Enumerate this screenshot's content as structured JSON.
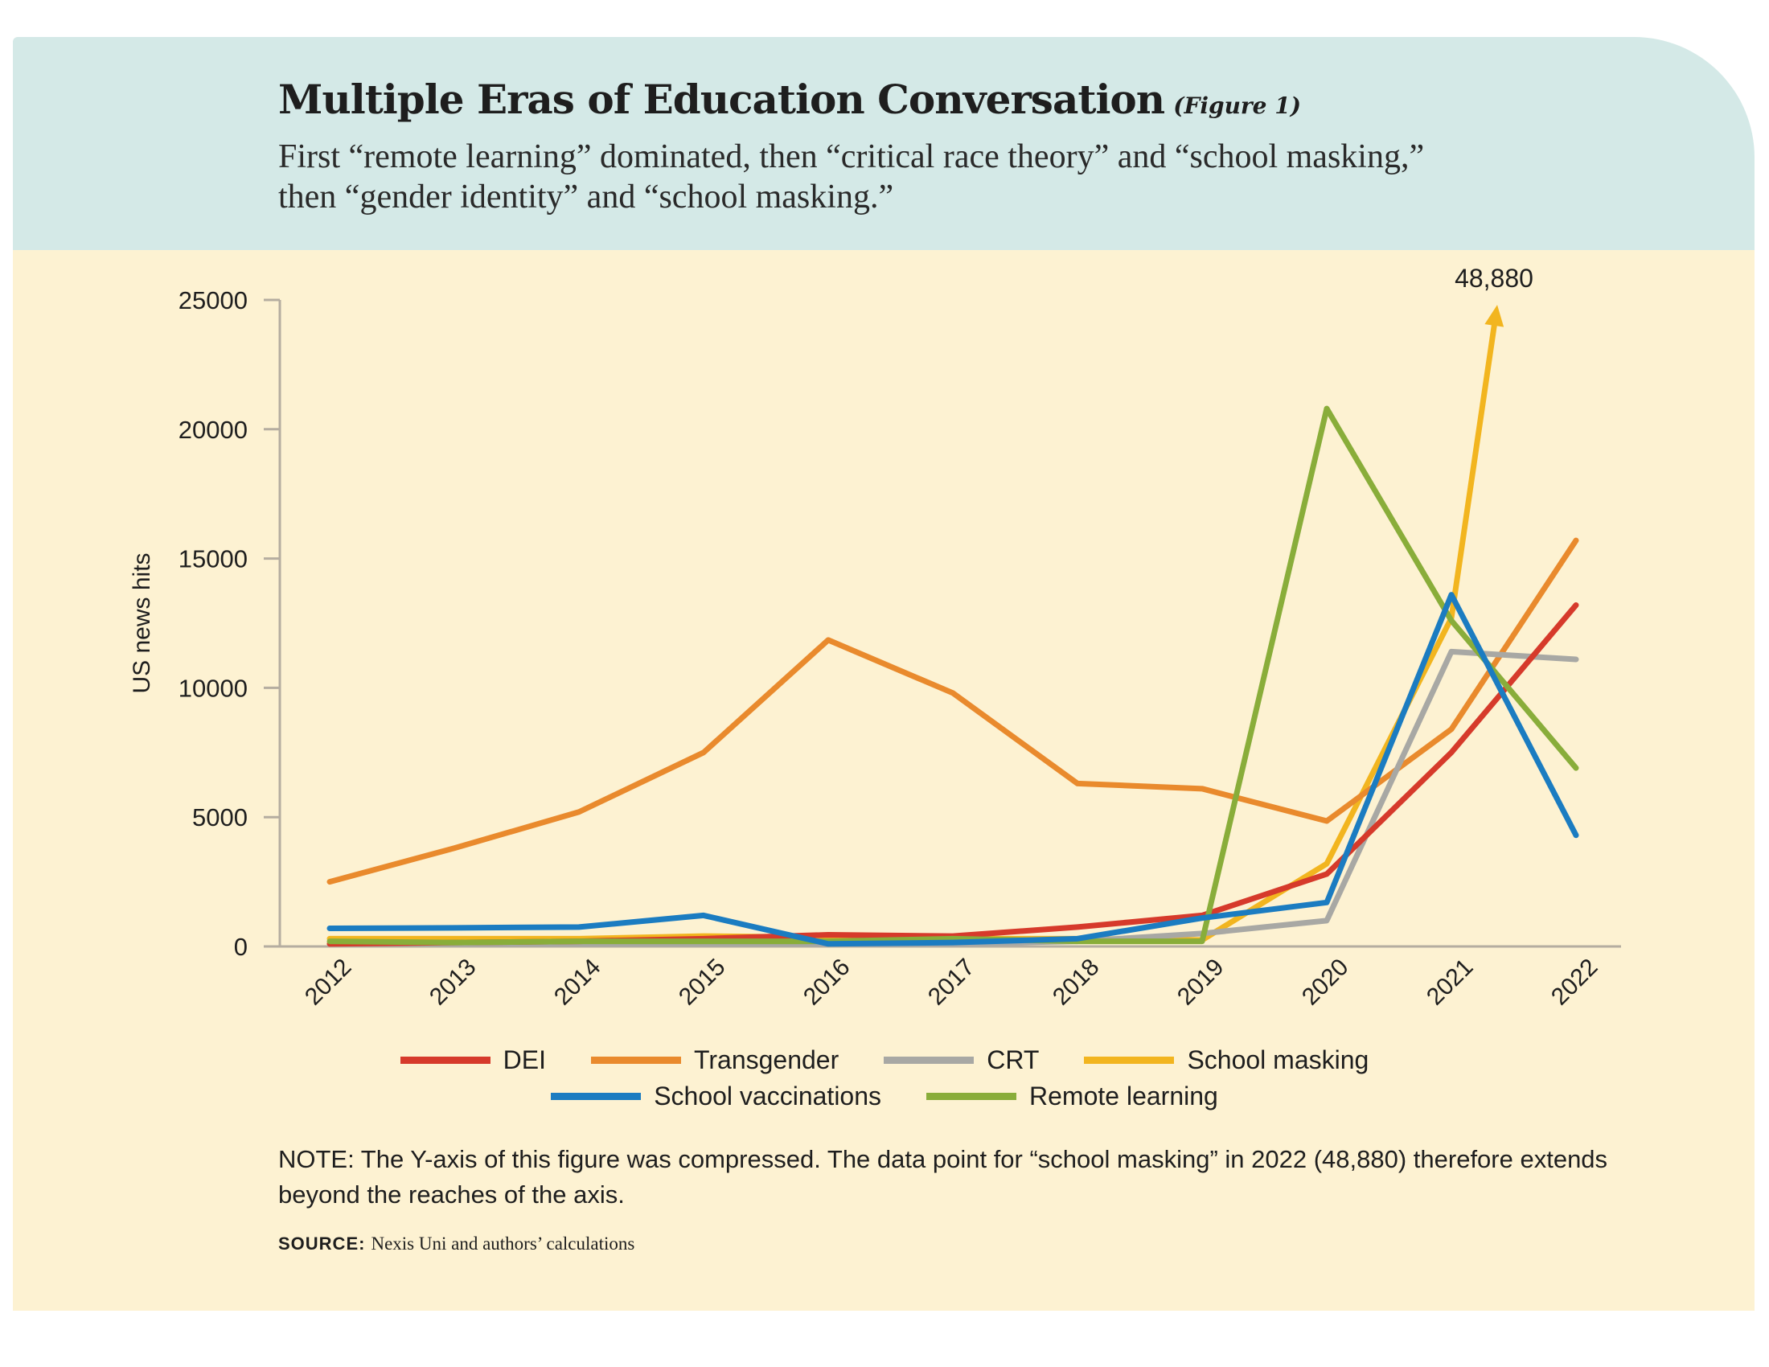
{
  "header": {
    "title": "Multiple Eras of Education Conversation",
    "figure_label": "(Figure 1)",
    "subtitle_line1": "First “remote learning” dominated, then “critical race theory” and “school masking,”",
    "subtitle_line2": "then “gender identity” and “school masking.”"
  },
  "chart_data": {
    "type": "line",
    "ylabel": "US news hits",
    "xlabel": "",
    "ylim": [
      0,
      25000
    ],
    "yticks": [
      0,
      5000,
      10000,
      15000,
      20000,
      25000
    ],
    "categories": [
      "2012",
      "2013",
      "2014",
      "2015",
      "2016",
      "2017",
      "2018",
      "2019",
      "2020",
      "2021",
      "2022"
    ],
    "grid": false,
    "legend_position": "bottom",
    "series": [
      {
        "name": "DEI",
        "color": "#d63a2b",
        "values": [
          100,
          150,
          200,
          300,
          450,
          400,
          750,
          1200,
          2800,
          7500,
          13200
        ]
      },
      {
        "name": "Transgender",
        "color": "#e98a2d",
        "values": [
          2500,
          3800,
          5200,
          7500,
          11850,
          9800,
          6300,
          6100,
          4850,
          8400,
          15700
        ]
      },
      {
        "name": "CRT",
        "color": "#a8a8a4",
        "values": [
          100,
          100,
          100,
          100,
          100,
          100,
          200,
          500,
          1000,
          11400,
          11100
        ]
      },
      {
        "name": "School masking",
        "color": "#f2b51f",
        "values": [
          300,
          300,
          300,
          400,
          350,
          300,
          300,
          250,
          3200,
          12700,
          48880
        ]
      },
      {
        "name": "School vaccinations",
        "color": "#1b7cc1",
        "values": [
          700,
          720,
          750,
          1200,
          100,
          150,
          300,
          1100,
          1700,
          13600,
          4300
        ]
      },
      {
        "name": "Remote learning",
        "color": "#89ad3a",
        "values": [
          200,
          150,
          200,
          200,
          200,
          300,
          200,
          200,
          20800,
          12600,
          6900
        ]
      }
    ],
    "annotation": {
      "text": "48,880",
      "series": "School masking",
      "category": "2022",
      "value": 48880
    }
  },
  "note": "NOTE: The Y-axis of this figure was compressed. The data point for “school masking” in 2022 (48,880) therefore extends beyond the reaches of the axis.",
  "source": {
    "label": "SOURCE:",
    "text": "Nexis Uni and authors’ calculations"
  }
}
